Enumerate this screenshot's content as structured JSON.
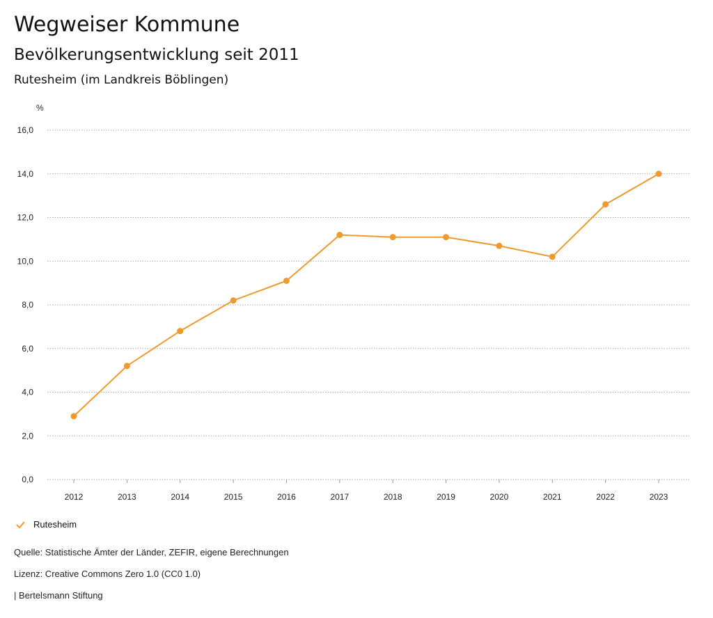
{
  "title": "Wegweiser Kommune",
  "subtitle": "Bevölkerungsentwicklung seit 2011",
  "region": "Rutesheim (im Landkreis Böblingen)",
  "source": "Quelle: Statistische Ämter der Länder, ZEFIR, eigene Berechnungen",
  "license": "Lizenz: Creative Commons Zero 1.0 (CC0 1.0)",
  "publisher": "| Bertelsmann Stiftung",
  "chart_data": {
    "type": "line",
    "ylabel": "%",
    "ylim": [
      0,
      16
    ],
    "yticks": [
      "0,0",
      "2,0",
      "4,0",
      "6,0",
      "8,0",
      "10,0",
      "12,0",
      "14,0",
      "16,0"
    ],
    "grid": true,
    "legend_position": "bottom-left",
    "categories": [
      "2012",
      "2013",
      "2014",
      "2015",
      "2016",
      "2017",
      "2018",
      "2019",
      "2020",
      "2021",
      "2022",
      "2023"
    ],
    "series": [
      {
        "name": "Rutesheim",
        "color": "#f0992e",
        "values": [
          2.9,
          5.2,
          6.8,
          8.2,
          9.1,
          11.2,
          11.1,
          11.1,
          10.7,
          10.2,
          12.6,
          14.0
        ]
      }
    ]
  }
}
